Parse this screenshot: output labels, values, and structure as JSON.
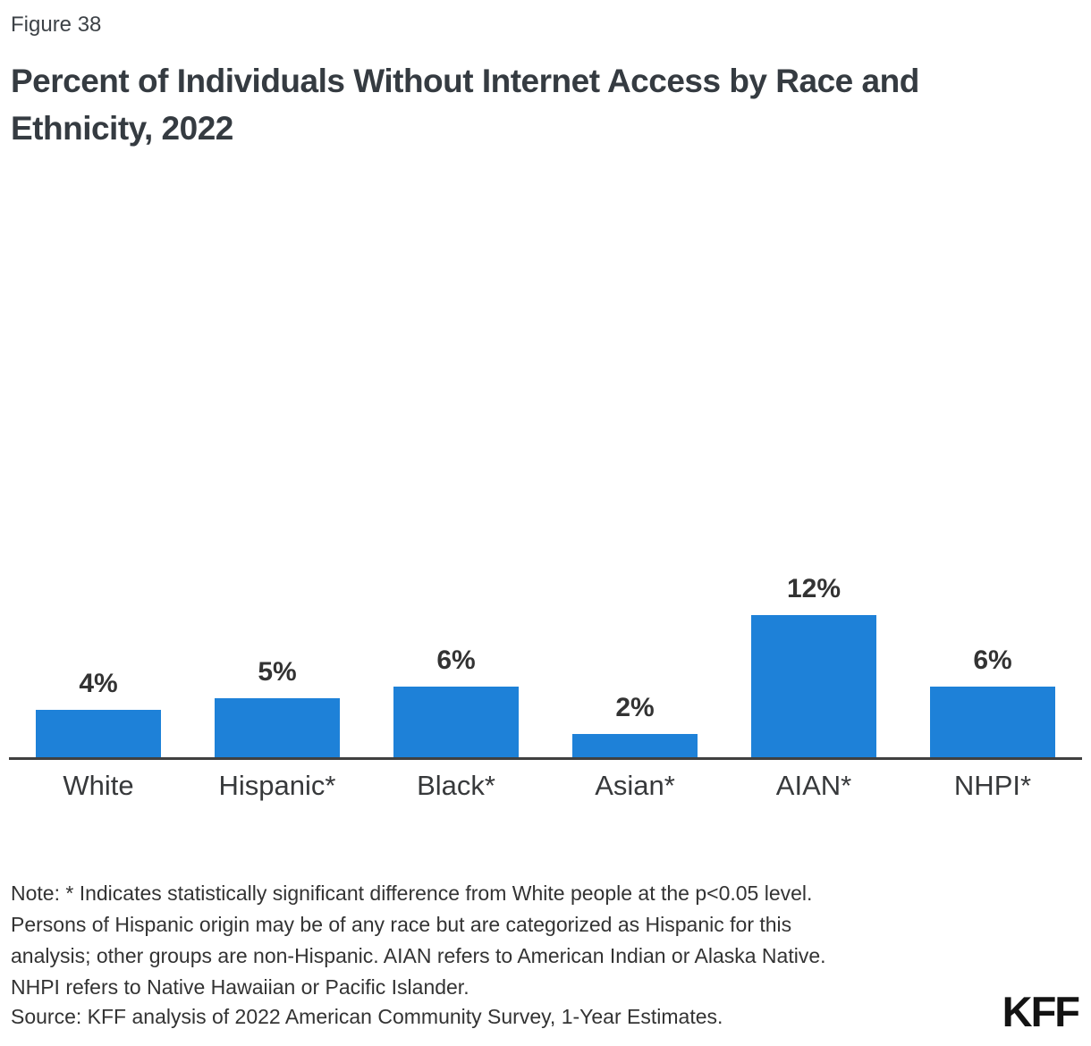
{
  "figure_label": "Figure 38",
  "title": "Percent of Individuals Without Internet Access by Race and Ethnicity, 2022",
  "chart_data": {
    "type": "bar",
    "title": "Percent of Individuals Without Internet Access by Race and Ethnicity, 2022",
    "categories": [
      "White",
      "Hispanic*",
      "Black*",
      "Asian*",
      "AIAN*",
      "NHPI*"
    ],
    "values": [
      4,
      5,
      6,
      2,
      12,
      6
    ],
    "value_labels": [
      "4%",
      "5%",
      "6%",
      "2%",
      "12%",
      "6%"
    ],
    "unit": "percent",
    "ylim": [
      0,
      13
    ],
    "grid": false,
    "legend": false,
    "bar_color": "#1e81d8",
    "axis_color": "#404040",
    "label_color": "#333333"
  },
  "note": {
    "lines": [
      "Note: * Indicates statistically significant difference from White people at the p<0.05 level.",
      "Persons of Hispanic origin may be of any race but are categorized as Hispanic for this",
      "analysis; other groups are non-Hispanic. AIAN refers to American Indian or Alaska Native.",
      "NHPI refers to Native Hawaiian or Pacific Islander."
    ]
  },
  "source": "Source: KFF analysis of 2022 American Community Survey, 1-Year Estimates.",
  "logo": "KFF"
}
